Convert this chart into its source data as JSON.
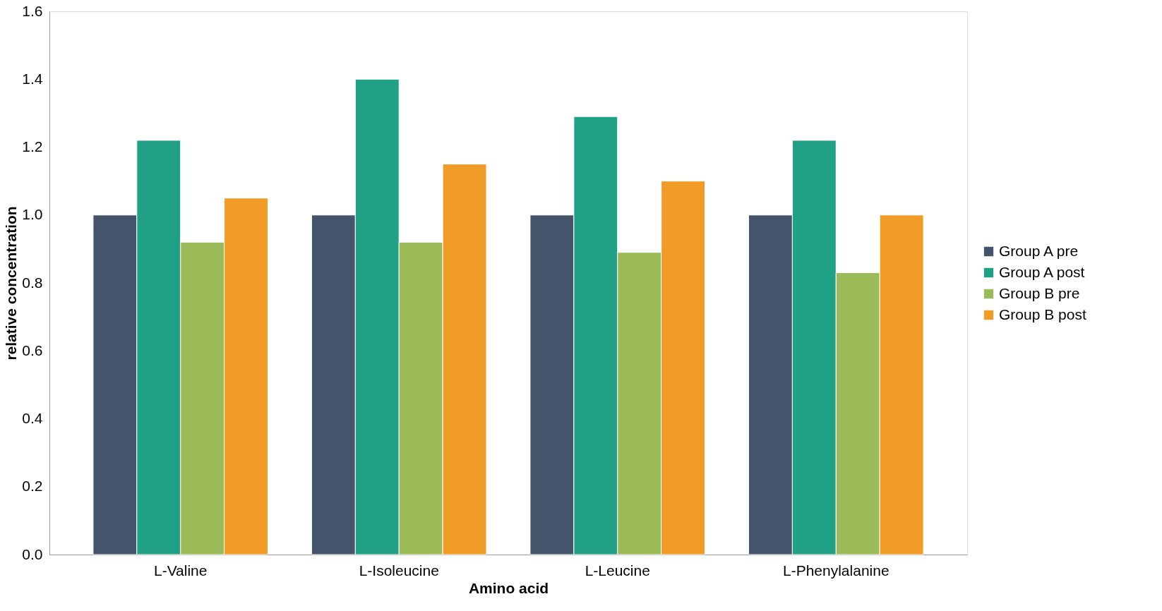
{
  "chart_data": {
    "type": "bar",
    "xlabel": "Amino acid",
    "ylabel": "relative concentration",
    "categories": [
      "L-Valine",
      "L-Isoleucine",
      "L-Leucine",
      "L-Phenylalanine"
    ],
    "series": [
      {
        "name": "Group A pre",
        "color": "#44546a",
        "values": [
          1.0,
          1.0,
          1.0,
          1.0
        ]
      },
      {
        "name": "Group A post",
        "color": "#20a185",
        "values": [
          1.22,
          1.4,
          1.29,
          1.22
        ]
      },
      {
        "name": "Group B pre",
        "color": "#9bbb59",
        "values": [
          0.92,
          0.92,
          0.89,
          0.83
        ]
      },
      {
        "name": "Group B post",
        "color": "#f29c28",
        "values": [
          1.05,
          1.15,
          1.1,
          1.0
        ]
      }
    ],
    "ylim": [
      0,
      1.6
    ],
    "yticks": [
      {
        "value": 0,
        "label": "0.0"
      },
      0.2,
      0.4,
      0.6,
      0.8,
      {
        "value": 1,
        "label": "1.0"
      },
      1.2,
      1.4,
      1.6
    ],
    "grid": false,
    "legend": "right"
  }
}
